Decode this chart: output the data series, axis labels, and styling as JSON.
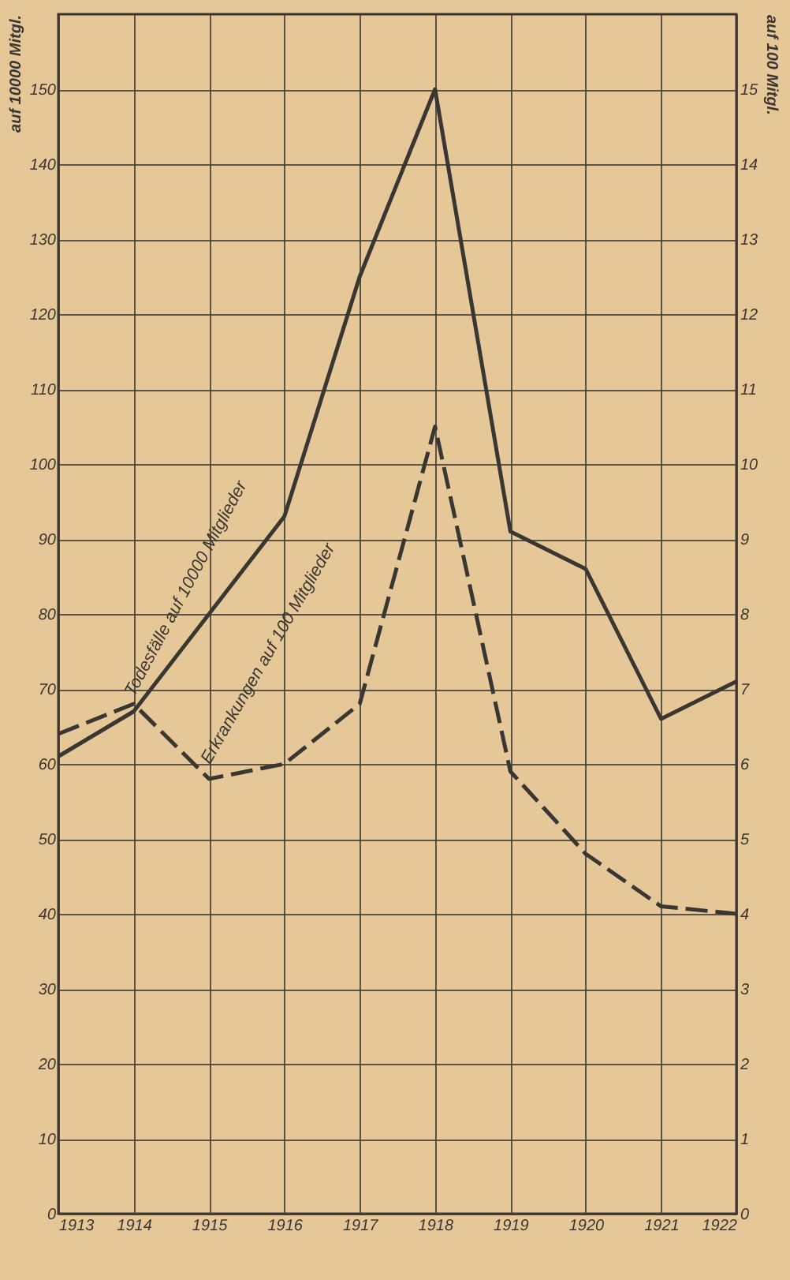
{
  "chart_data": {
    "type": "line",
    "ylabel": "auf 10000 Mitgl.",
    "y2label": "auf 100 Mitgl.",
    "x": [
      1913,
      1914,
      1915,
      1916,
      1917,
      1918,
      1919,
      1920,
      1921,
      1922
    ],
    "xlim": [
      1913,
      1922
    ],
    "xticks": [
      1913,
      1914,
      1915,
      1916,
      1917,
      1918,
      1919,
      1920,
      1921,
      1922
    ],
    "ylim": [
      0,
      160
    ],
    "yticks": [
      0,
      10,
      20,
      30,
      40,
      50,
      60,
      70,
      80,
      90,
      100,
      110,
      120,
      130,
      140,
      150
    ],
    "y2lim": [
      0,
      16
    ],
    "y2ticks": [
      0,
      1,
      2,
      3,
      4,
      5,
      6,
      7,
      8,
      9,
      10,
      11,
      12,
      13,
      14,
      15
    ],
    "series": [
      {
        "color": "#3a3733",
        "line_style": "solid",
        "values": [
          61,
          67,
          80,
          93,
          125,
          150,
          91,
          86,
          66,
          71
        ]
      },
      {
        "color": "#3a3733",
        "line_style": "dashed",
        "axis": "y2",
        "values": [
          6.4,
          6.8,
          5.8,
          6.0,
          6.8,
          10.5,
          5.9,
          4.8,
          4.1,
          4.0
        ]
      }
    ],
    "annotations": [
      "Todesfälle auf 10000 Mitglieder",
      "Erkrankungen auf 100 Mitglieder"
    ],
    "grid": true,
    "marker": "none"
  }
}
